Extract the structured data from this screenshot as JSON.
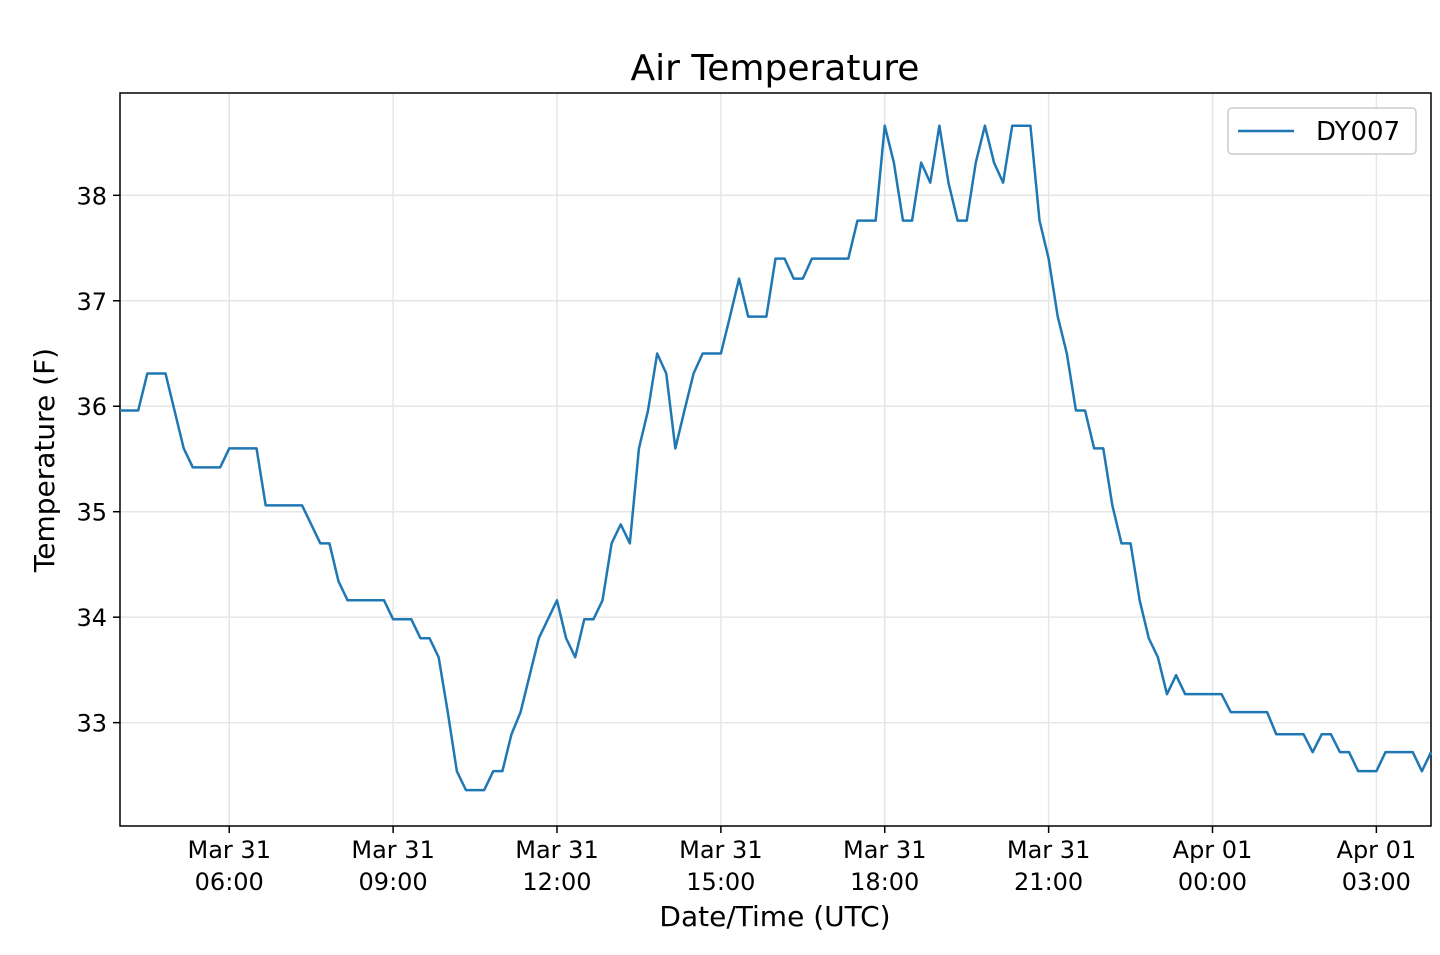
{
  "chart_data": {
    "type": "line",
    "title": "Air Temperature",
    "xlabel": "Date/Time (UTC)",
    "ylabel": "Temperature (F)",
    "x": [
      "Mar 31 04:00",
      "Mar 31 04:20",
      "Mar 31 04:30",
      "Mar 31 04:50",
      "Mar 31 05:10",
      "Mar 31 05:20",
      "Mar 31 05:50",
      "Mar 31 06:00",
      "Mar 31 06:30",
      "Mar 31 06:40",
      "Mar 31 07:20",
      "Mar 31 07:40",
      "Mar 31 07:50",
      "Mar 31 08:00",
      "Mar 31 08:10",
      "Mar 31 08:50",
      "Mar 31 09:00",
      "Mar 31 09:20",
      "Mar 31 09:30",
      "Mar 31 09:40",
      "Mar 31 09:50",
      "Mar 31 10:00",
      "Mar 31 10:10",
      "Mar 31 10:20",
      "Mar 31 10:40",
      "Mar 31 10:50",
      "Mar 31 11:00",
      "Mar 31 11:10",
      "Mar 31 11:20",
      "Mar 31 11:30",
      "Mar 31 11:40",
      "Mar 31 11:50",
      "Mar 31 12:00",
      "Mar 31 12:10",
      "Mar 31 12:20",
      "Mar 31 12:30",
      "Mar 31 12:40",
      "Mar 31 12:50",
      "Mar 31 13:00",
      "Mar 31 13:10",
      "Mar 31 13:20",
      "Mar 31 13:30",
      "Mar 31 13:40",
      "Mar 31 13:50",
      "Mar 31 14:00",
      "Mar 31 14:10",
      "Mar 31 14:20",
      "Mar 31 14:30",
      "Mar 31 14:40",
      "Mar 31 15:00",
      "Mar 31 15:10",
      "Mar 31 15:20",
      "Mar 31 15:30",
      "Mar 31 15:50",
      "Mar 31 16:00",
      "Mar 31 16:10",
      "Mar 31 16:20",
      "Mar 31 16:30",
      "Mar 31 16:40",
      "Mar 31 17:20",
      "Mar 31 17:30",
      "Mar 31 17:50",
      "Mar 31 18:00",
      "Mar 31 18:10",
      "Mar 31 18:20",
      "Mar 31 18:30",
      "Mar 31 18:40",
      "Mar 31 18:50",
      "Mar 31 19:00",
      "Mar 31 19:10",
      "Mar 31 19:20",
      "Mar 31 19:30",
      "Mar 31 19:40",
      "Mar 31 19:50",
      "Mar 31 20:00",
      "Mar 31 20:10",
      "Mar 31 20:20",
      "Mar 31 20:40",
      "Mar 31 20:50",
      "Mar 31 21:00",
      "Mar 31 21:10",
      "Mar 31 21:20",
      "Mar 31 21:30",
      "Mar 31 21:40",
      "Mar 31 21:50",
      "Mar 31 22:00",
      "Mar 31 22:10",
      "Mar 31 22:20",
      "Mar 31 22:30",
      "Mar 31 22:40",
      "Mar 31 22:50",
      "Mar 31 23:00",
      "Mar 31 23:10",
      "Mar 31 23:20",
      "Mar 31 23:30",
      "Apr 01 00:10",
      "Apr 01 00:20",
      "Apr 01 01:00",
      "Apr 01 01:10",
      "Apr 01 01:40",
      "Apr 01 01:50",
      "Apr 01 02:00",
      "Apr 01 02:10",
      "Apr 01 02:20",
      "Apr 01 02:30",
      "Apr 01 02:40",
      "Apr 01 03:00",
      "Apr 01 03:10",
      "Apr 01 03:40",
      "Apr 01 03:50",
      "Apr 01 04:00"
    ],
    "series": [
      {
        "name": "DY007",
        "color": "#1f77b4",
        "values": [
          35.96,
          35.96,
          36.31,
          36.31,
          35.6,
          35.42,
          35.42,
          35.6,
          35.6,
          35.06,
          35.06,
          34.7,
          34.7,
          34.34,
          34.16,
          34.16,
          33.98,
          33.98,
          33.8,
          33.8,
          33.62,
          33.1,
          32.54,
          32.36,
          32.36,
          32.54,
          32.54,
          32.89,
          33.1,
          33.45,
          33.8,
          33.98,
          34.16,
          33.8,
          33.62,
          33.98,
          33.98,
          34.16,
          34.7,
          34.88,
          34.7,
          35.6,
          35.96,
          36.5,
          36.31,
          35.6,
          35.96,
          36.31,
          36.5,
          36.5,
          36.85,
          37.21,
          36.85,
          36.85,
          37.4,
          37.4,
          37.21,
          37.21,
          37.4,
          37.4,
          37.76,
          37.76,
          38.66,
          38.31,
          37.76,
          37.76,
          38.31,
          38.12,
          38.66,
          38.12,
          37.76,
          37.76,
          38.31,
          38.66,
          38.31,
          38.12,
          38.66,
          38.66,
          37.76,
          37.4,
          36.85,
          36.5,
          35.96,
          35.96,
          35.6,
          35.6,
          35.06,
          34.7,
          34.7,
          34.16,
          33.8,
          33.62,
          33.27,
          33.45,
          33.27,
          33.27,
          33.1,
          33.1,
          32.89,
          32.89,
          32.72,
          32.89,
          32.89,
          32.72,
          32.72,
          32.54,
          32.54,
          32.72,
          32.72,
          32.54,
          32.72
        ]
      }
    ],
    "xlim": [
      "Mar 31 04:00",
      "Apr 01 04:00"
    ],
    "xticks": [
      {
        "value": "Mar 31 06:00",
        "label": [
          "Mar 31",
          "06:00"
        ]
      },
      {
        "value": "Mar 31 09:00",
        "label": [
          "Mar 31",
          "09:00"
        ]
      },
      {
        "value": "Mar 31 12:00",
        "label": [
          "Mar 31",
          "12:00"
        ]
      },
      {
        "value": "Mar 31 15:00",
        "label": [
          "Mar 31",
          "15:00"
        ]
      },
      {
        "value": "Mar 31 18:00",
        "label": [
          "Mar 31",
          "18:00"
        ]
      },
      {
        "value": "Mar 31 21:00",
        "label": [
          "Mar 31",
          "21:00"
        ]
      },
      {
        "value": "Apr 01 00:00",
        "label": [
          "Apr 01",
          "00:00"
        ]
      },
      {
        "value": "Apr 01 03:00",
        "label": [
          "Apr 01",
          "03:00"
        ]
      }
    ],
    "ylim": [
      32.02,
      38.97
    ],
    "yticks": [
      33,
      34,
      35,
      36,
      37,
      38
    ],
    "grid": true,
    "legend": "upper right"
  }
}
